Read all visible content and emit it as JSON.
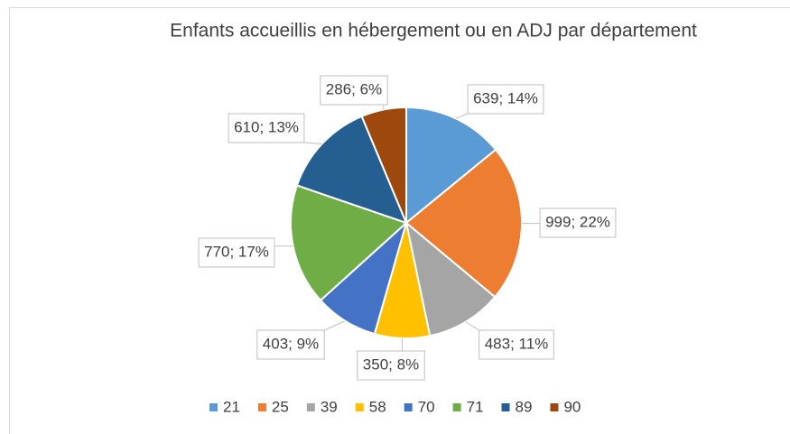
{
  "chart_data": {
    "type": "pie",
    "title": "Enfants accueillis en hébergement ou en ADJ par département",
    "categories": [
      "21",
      "25",
      "39",
      "58",
      "70",
      "71",
      "89",
      "90"
    ],
    "values": [
      639,
      999,
      483,
      350,
      403,
      770,
      610,
      286
    ],
    "value_labels": [
      "639; 14%",
      "999; 22%",
      "483; 11%",
      "350; 8%",
      "403; 9%",
      "770; 17%",
      "610; 13%",
      "286; 6%"
    ],
    "colors": [
      "#5b9bd5",
      "#ed7d31",
      "#a5a5a5",
      "#ffc000",
      "#4472c4",
      "#70ad47",
      "#255e91",
      "#9e480e"
    ],
    "legend": "bottom"
  }
}
